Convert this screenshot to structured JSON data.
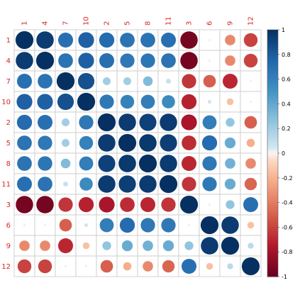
{
  "chart_data": {
    "type": "heatmap",
    "subtype": "correlation-matrix-circles",
    "column_labels": [
      "1",
      "4",
      "7",
      "10",
      "2",
      "5",
      "8",
      "11",
      "3",
      "6",
      "9",
      "12"
    ],
    "row_labels": [
      "1",
      "4",
      "7",
      "10",
      "2",
      "5",
      "8",
      "11",
      "3",
      "6",
      "9",
      "12"
    ],
    "matrix": [
      [
        1.0,
        0.95,
        0.7,
        0.78,
        0.72,
        0.68,
        0.68,
        0.7,
        -0.95,
        0.02,
        -0.35,
        -0.6
      ],
      [
        0.95,
        1.0,
        0.68,
        0.78,
        0.7,
        0.65,
        0.66,
        0.68,
        -0.95,
        0.02,
        -0.35,
        -0.6
      ],
      [
        0.7,
        0.68,
        1.0,
        0.85,
        0.2,
        0.2,
        0.3,
        0.08,
        -0.65,
        -0.5,
        -0.7,
        0.02
      ],
      [
        0.78,
        0.78,
        0.85,
        1.0,
        0.65,
        0.6,
        0.62,
        0.55,
        -0.72,
        0.05,
        -0.15,
        0.02
      ],
      [
        0.72,
        0.7,
        0.2,
        0.65,
        1.0,
        0.95,
        0.92,
        0.95,
        -0.78,
        0.62,
        0.25,
        -0.5
      ],
      [
        0.68,
        0.65,
        0.2,
        0.6,
        0.95,
        1.0,
        0.96,
        0.93,
        -0.68,
        0.72,
        0.38,
        -0.22
      ],
      [
        0.68,
        0.66,
        0.3,
        0.62,
        0.92,
        0.96,
        1.0,
        0.95,
        -0.7,
        0.65,
        0.35,
        -0.35
      ],
      [
        0.7,
        0.68,
        0.08,
        0.55,
        0.95,
        0.93,
        0.95,
        1.0,
        -0.65,
        0.65,
        0.38,
        -0.48
      ],
      [
        -0.95,
        -0.95,
        -0.65,
        -0.72,
        -0.78,
        -0.68,
        -0.7,
        -0.65,
        1.0,
        0.02,
        0.25,
        0.7
      ],
      [
        0.02,
        0.02,
        -0.5,
        0.05,
        0.62,
        0.72,
        0.65,
        0.65,
        0.02,
        1.0,
        0.95,
        -0.15
      ],
      [
        -0.35,
        -0.35,
        -0.7,
        -0.15,
        0.25,
        0.38,
        0.35,
        0.38,
        0.25,
        0.95,
        1.0,
        0.12
      ],
      [
        -0.6,
        -0.6,
        0.02,
        0.02,
        -0.5,
        -0.22,
        -0.35,
        -0.48,
        0.7,
        -0.15,
        0.12,
        1.0
      ]
    ],
    "colorbar": {
      "range": [
        -1,
        1
      ],
      "ticks": [
        "1",
        "0.8",
        "0.6",
        "0.4",
        "0.2",
        "0",
        "-0.2",
        "-0.4",
        "-0.6",
        "-0.8",
        "-1"
      ],
      "colors": {
        "strong_negative": "#67001f",
        "mid_negative": "#d6604d",
        "zero": "#f7f7f7",
        "mid_positive": "#4393c3",
        "strong_positive": "#053061"
      }
    },
    "grid": true,
    "legend": "right",
    "label_color": "#d62728"
  }
}
